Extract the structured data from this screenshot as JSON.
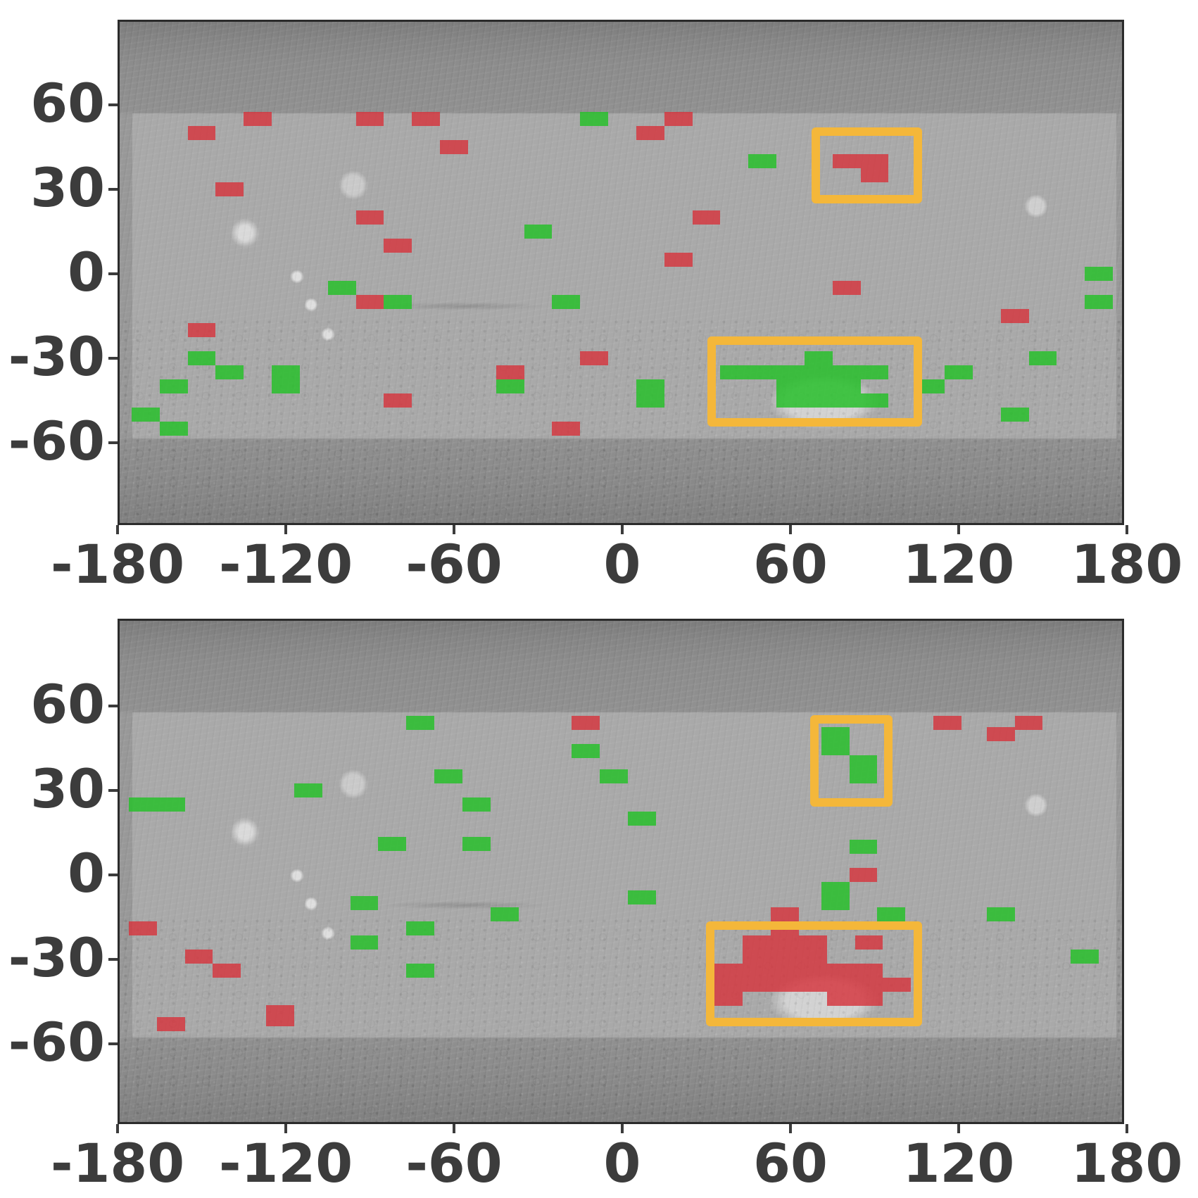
{
  "colors": {
    "detection_red": "#d6343d",
    "detection_green": "#28bf2c",
    "highlight_orange": "#f4b73a",
    "axis_text": "#3c3c3c",
    "map_base_gray": "#979797"
  },
  "axes": {
    "x_tick_labels": [
      "-180",
      "-120",
      "-60",
      "0",
      "60",
      "120",
      "180"
    ],
    "x_tick_values": [
      -180,
      -120,
      -60,
      0,
      60,
      120,
      180
    ],
    "y_tick_labels": [
      "60",
      "30",
      "0",
      "-30",
      "-60"
    ],
    "y_tick_values": [
      60,
      30,
      0,
      -30,
      -60
    ]
  },
  "cell_size_deg": {
    "lon": 10,
    "lat": 5
  },
  "panels": [
    {
      "id": "top-map-panel",
      "highlight_boxes": [
        {
          "lon_min": 67.5,
          "lon_max": 107,
          "lat_min": 25,
          "lat_max": 52
        },
        {
          "lon_min": 30.4,
          "lon_max": 107,
          "lat_min": -54.3,
          "lat_max": -22.3
        }
      ],
      "red_cells": [
        [
          -130,
          55
        ],
        [
          -90,
          55
        ],
        [
          -70,
          55
        ],
        [
          20,
          55
        ],
        [
          -150,
          50
        ],
        [
          10,
          50
        ],
        [
          -60,
          45
        ],
        [
          80,
          40
        ],
        [
          90,
          40
        ],
        [
          90,
          35
        ],
        [
          -140,
          30
        ],
        [
          -90,
          20
        ],
        [
          30,
          20
        ],
        [
          -80,
          10
        ],
        [
          20,
          5
        ],
        [
          80,
          -5
        ],
        [
          -90,
          -10
        ],
        [
          140,
          -15
        ],
        [
          -150,
          -20
        ],
        [
          -10,
          -30
        ],
        [
          -40,
          -35
        ],
        [
          -80,
          -45
        ],
        [
          -20,
          -55
        ]
      ],
      "green_cells": [
        [
          -10,
          55
        ],
        [
          50,
          40
        ],
        [
          -30,
          15
        ],
        [
          170,
          0
        ],
        [
          -100,
          -5
        ],
        [
          -80,
          -10
        ],
        [
          -20,
          -10
        ],
        [
          170,
          -10
        ],
        [
          -150,
          -30
        ],
        [
          70,
          -30
        ],
        [
          150,
          -30
        ],
        [
          -140,
          -35
        ],
        [
          -120,
          -35
        ],
        [
          40,
          -35
        ],
        [
          50,
          -35
        ],
        [
          60,
          -35
        ],
        [
          70,
          -35
        ],
        [
          80,
          -35
        ],
        [
          90,
          -35
        ],
        [
          120,
          -35
        ],
        [
          -160,
          -40
        ],
        [
          -120,
          -40
        ],
        [
          -40,
          -40
        ],
        [
          10,
          -40
        ],
        [
          60,
          -40
        ],
        [
          70,
          -40
        ],
        [
          80,
          -40
        ],
        [
          110,
          -40
        ],
        [
          10,
          -45
        ],
        [
          60,
          -45
        ],
        [
          70,
          -45
        ],
        [
          80,
          -45
        ],
        [
          90,
          -45
        ],
        [
          -170,
          -50
        ],
        [
          140,
          -50
        ],
        [
          -160,
          -55
        ]
      ]
    },
    {
      "id": "bottom-map-panel",
      "highlight_boxes": [
        {
          "lon_min": 67,
          "lon_max": 96.4,
          "lat_min": 24.3,
          "lat_max": 56.8
        },
        {
          "lon_min": 29.9,
          "lon_max": 107,
          "lat_min": -53.8,
          "lat_max": -16.5
        }
      ],
      "red_cells": [
        [
          -13,
          54
        ],
        [
          116,
          54
        ],
        [
          145,
          54
        ],
        [
          135,
          50
        ],
        [
          86,
          0
        ],
        [
          -171,
          -19
        ],
        [
          -151,
          -29
        ],
        [
          -141,
          -34
        ],
        [
          -161,
          -53
        ],
        [
          -122,
          -50,
          7.5
        ],
        [
          58,
          -14
        ],
        [
          58,
          -19
        ],
        [
          48,
          -24
        ],
        [
          58,
          -24
        ],
        [
          68,
          -24
        ],
        [
          88,
          -24
        ],
        [
          48,
          -29
        ],
        [
          58,
          -29
        ],
        [
          68,
          -29
        ],
        [
          38,
          -34
        ],
        [
          48,
          -34
        ],
        [
          58,
          -34
        ],
        [
          68,
          -34
        ],
        [
          78,
          -34
        ],
        [
          88,
          -34
        ],
        [
          38,
          -39
        ],
        [
          48,
          -39
        ],
        [
          58,
          -39
        ],
        [
          68,
          -39
        ],
        [
          78,
          -39
        ],
        [
          88,
          -39
        ],
        [
          98,
          -39
        ],
        [
          38,
          -44
        ],
        [
          78,
          -44
        ],
        [
          88,
          -44
        ]
      ],
      "green_cells": [
        [
          -72,
          54
        ],
        [
          -13,
          44
        ],
        [
          76,
          50
        ],
        [
          76,
          45
        ],
        [
          86,
          40
        ],
        [
          86,
          35
        ],
        [
          -62,
          35
        ],
        [
          -3,
          35
        ],
        [
          -112,
          30
        ],
        [
          -171,
          25
        ],
        [
          -161,
          25
        ],
        [
          -52,
          25
        ],
        [
          7,
          20
        ],
        [
          -82,
          11
        ],
        [
          -52,
          11
        ],
        [
          86,
          10
        ],
        [
          7,
          -8
        ],
        [
          76,
          -5
        ],
        [
          76,
          -10
        ],
        [
          -92,
          -10
        ],
        [
          -42,
          -14
        ],
        [
          96,
          -14
        ],
        [
          135,
          -14
        ],
        [
          -72,
          -19
        ],
        [
          -92,
          -24
        ],
        [
          165,
          -29
        ],
        [
          -72,
          -34
        ]
      ]
    }
  ]
}
